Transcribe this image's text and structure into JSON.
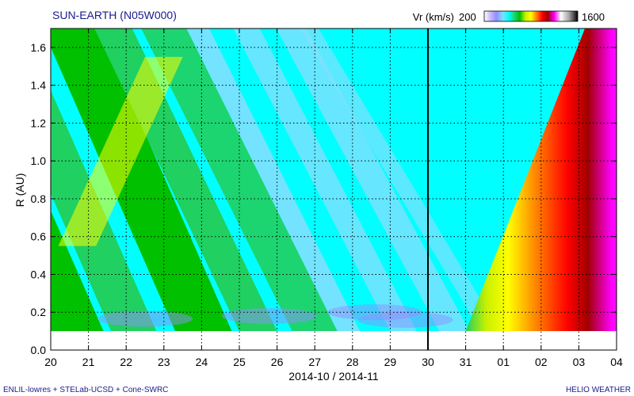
{
  "header": {
    "title": "SUN-EARTH (N05W000)",
    "colorbar_label": "Vr (km/s)",
    "colorbar_min": "200",
    "colorbar_max": "1600"
  },
  "footer": {
    "left": "ENLIL-lowres + STELab-UCSD + Cone-SWRC",
    "right": "HELIO WEATHER"
  },
  "chart_data": {
    "type": "heatmap",
    "title": "SUN-EARTH (N05W000)",
    "xlabel": "2014-10 / 2014-11",
    "ylabel": "R (AU)",
    "x_tick_labels": [
      "20",
      "21",
      "22",
      "23",
      "24",
      "25",
      "26",
      "27",
      "28",
      "29",
      "30",
      "31",
      "01",
      "02",
      "03",
      "04"
    ],
    "x_range_days": [
      0,
      15
    ],
    "y_tick_values": [
      0.0,
      0.2,
      0.4,
      0.6,
      0.8,
      1.0,
      1.2,
      1.4,
      1.6
    ],
    "y_tick_labels": [
      "0.0",
      "0.2",
      "0.4",
      "0.6",
      "0.8",
      "1.0",
      "1.2",
      "1.4",
      "1.6"
    ],
    "ylim": [
      0.0,
      1.7
    ],
    "inner_boundary_au": 0.1,
    "current_time_marker": "30",
    "colorscale": {
      "variable": "Vr (km/s)",
      "min": 200,
      "max": 1600,
      "colors": [
        "#ffffff",
        "#c8b4ff",
        "#8f8fff",
        "#80e0ff",
        "#00ffff",
        "#20d060",
        "#00c000",
        "#c8f000",
        "#ffff00",
        "#ff8000",
        "#ff0000",
        "#a00000",
        "#ff00ff",
        "#ffffff",
        "#a0a0a0",
        "#000000"
      ]
    },
    "grid": true
  }
}
